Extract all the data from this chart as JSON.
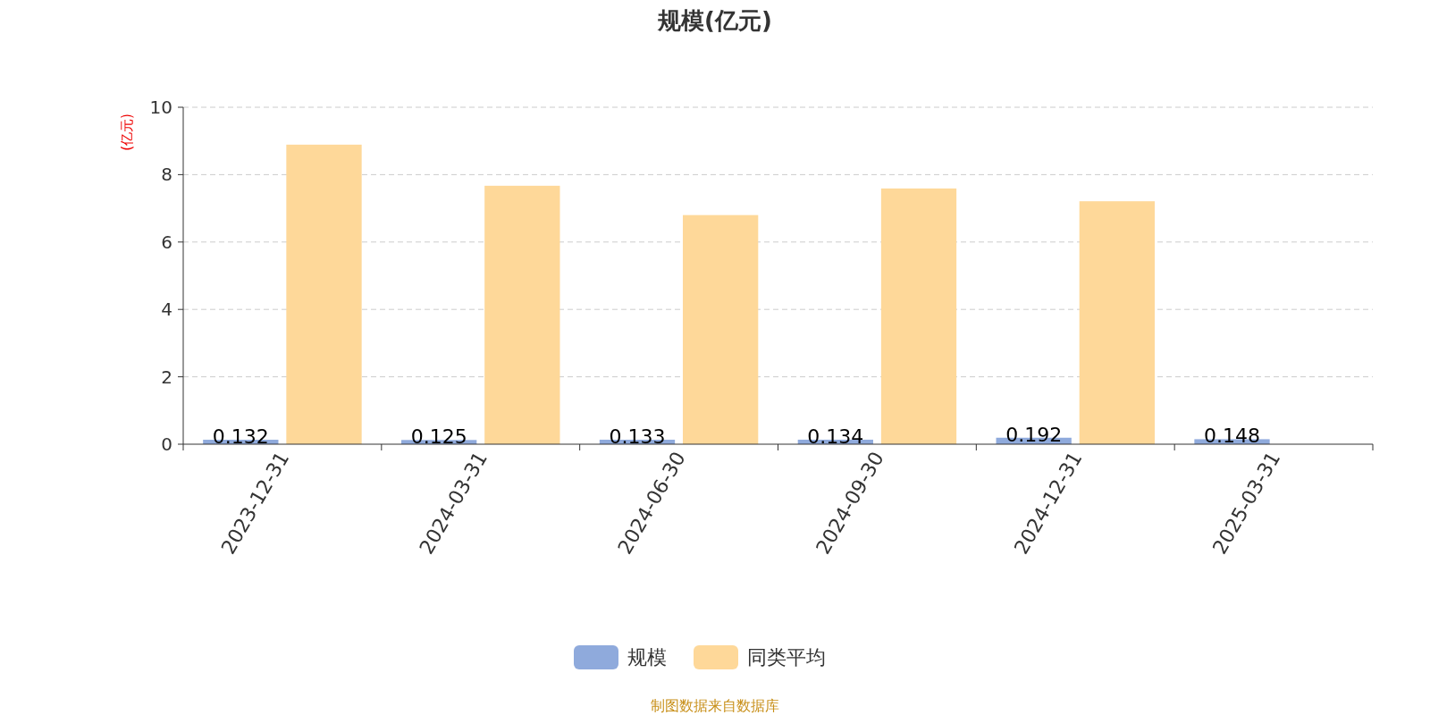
{
  "chart_data": {
    "type": "bar",
    "title": "规模(亿元)",
    "ylabel": "(亿元)",
    "categories": [
      "2023-12-31",
      "2024-03-31",
      "2024-06-30",
      "2024-09-30",
      "2024-12-31",
      "2025-03-31"
    ],
    "series": [
      {
        "name": "规模",
        "color": "#8faadc",
        "values": [
          0.132,
          0.125,
          0.133,
          0.134,
          0.192,
          0.148
        ],
        "value_labels": [
          "0.132",
          "0.125",
          "0.133",
          "0.134",
          "0.192",
          "0.148"
        ]
      },
      {
        "name": "同类平均",
        "color": "#fed899",
        "values": [
          8.89,
          7.67,
          6.8,
          7.59,
          7.21,
          null
        ]
      }
    ],
    "ylim": [
      0,
      10
    ],
    "yticks": [
      0,
      2,
      4,
      6,
      8,
      10
    ],
    "grid": "y",
    "legend": "bottom",
    "annotations": [
      "制图数据来自数据库"
    ]
  }
}
